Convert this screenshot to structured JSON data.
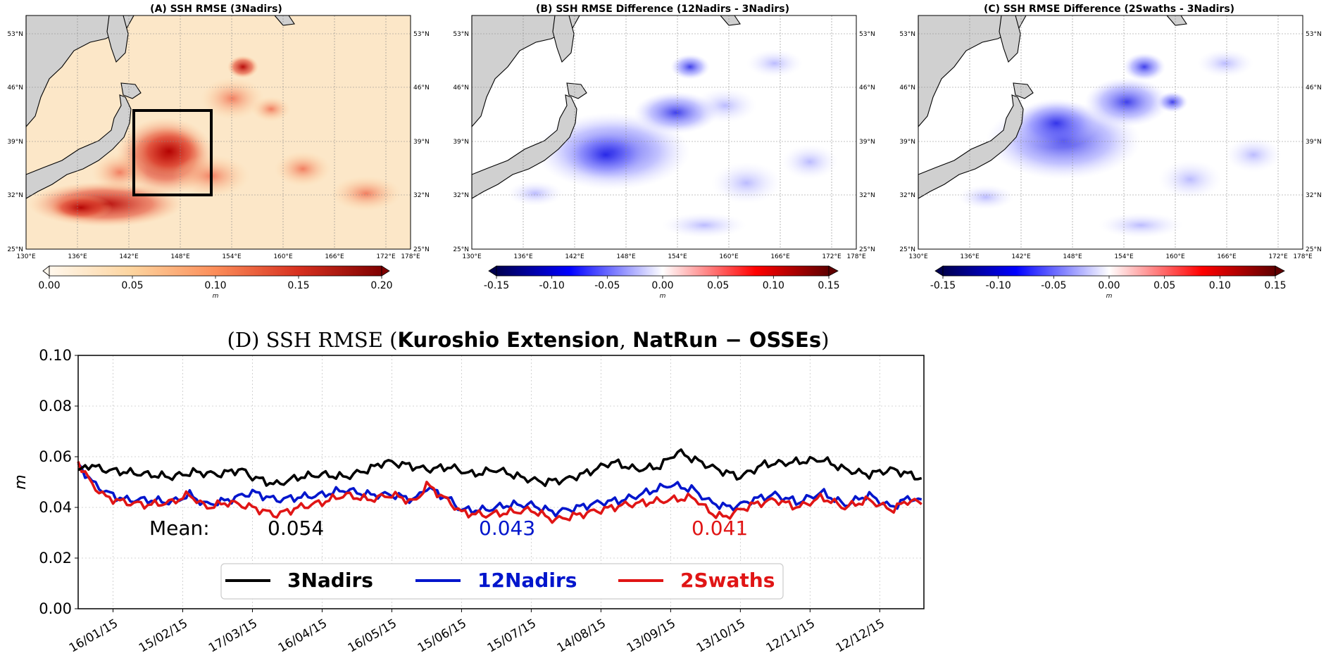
{
  "maps": [
    {
      "id": "A",
      "title": "(A) SSH RMSE (3Nadirs)",
      "palette": "reds",
      "colorbar_ticks": [
        "0.00",
        "0.05",
        "0.10",
        "0.15",
        "0.20"
      ],
      "colorbar_unit": "m",
      "has_box": true
    },
    {
      "id": "B",
      "title": "(B) SSH RMSE Difference (12Nadirs - 3Nadirs)",
      "palette": "diverging",
      "colorbar_ticks": [
        "-0.15",
        "-0.10",
        "-0.05",
        "0.00",
        "0.05",
        "0.10",
        "0.15"
      ],
      "colorbar_unit": "m",
      "has_box": false
    },
    {
      "id": "C",
      "title": "(C) SSH RMSE Difference (2Swaths - 3Nadirs)",
      "palette": "diverging",
      "colorbar_ticks": [
        "-0.15",
        "-0.10",
        "-0.05",
        "0.00",
        "0.05",
        "0.10",
        "0.15"
      ],
      "colorbar_unit": "m",
      "has_box": false
    }
  ],
  "map_axes": {
    "lat_ticks": [
      "53°N",
      "46°N",
      "39°N",
      "32°N",
      "25°N"
    ],
    "lon_ticks": [
      "130°E",
      "136°E",
      "142°E",
      "148°E",
      "154°E",
      "160°E",
      "166°E",
      "172°E",
      "178°E"
    ]
  },
  "chart_data": {
    "type": "line",
    "title_prefix": "(D) SSH  RMSE (",
    "title_bold": "Kuroshio Extension",
    "title_sep": ", ",
    "title_bold2": "NatRun  −  OSSEs",
    "title_suffix": ")",
    "ylabel": "m",
    "ylim": [
      0.0,
      0.1
    ],
    "yticks": [
      "0.00",
      "0.02",
      "0.04",
      "0.06",
      "0.08",
      "0.10"
    ],
    "xticks": [
      "16/01/15",
      "15/02/15",
      "17/03/15",
      "16/04/15",
      "16/05/15",
      "15/06/15",
      "15/07/15",
      "14/08/15",
      "13/09/15",
      "13/10/15",
      "12/11/15",
      "12/12/15"
    ],
    "xtick_days": [
      15,
      45,
      75,
      105,
      135,
      165,
      195,
      225,
      255,
      285,
      315,
      345
    ],
    "xlim_days": [
      0,
      364
    ],
    "mean_label": "Mean:",
    "series": [
      {
        "name": "3Nadirs",
        "color": "#000000",
        "mean": "0.054",
        "keypoints": [
          [
            0,
            0.054
          ],
          [
            5,
            0.057
          ],
          [
            10,
            0.055
          ],
          [
            20,
            0.054
          ],
          [
            30,
            0.053
          ],
          [
            40,
            0.052
          ],
          [
            50,
            0.054
          ],
          [
            60,
            0.053
          ],
          [
            70,
            0.055
          ],
          [
            75,
            0.052
          ],
          [
            85,
            0.049
          ],
          [
            95,
            0.052
          ],
          [
            105,
            0.053
          ],
          [
            115,
            0.052
          ],
          [
            125,
            0.055
          ],
          [
            132,
            0.058
          ],
          [
            140,
            0.057
          ],
          [
            150,
            0.055
          ],
          [
            160,
            0.056
          ],
          [
            170,
            0.053
          ],
          [
            180,
            0.055
          ],
          [
            190,
            0.052
          ],
          [
            200,
            0.05
          ],
          [
            210,
            0.051
          ],
          [
            220,
            0.054
          ],
          [
            230,
            0.058
          ],
          [
            240,
            0.055
          ],
          [
            250,
            0.056
          ],
          [
            258,
            0.062
          ],
          [
            265,
            0.059
          ],
          [
            275,
            0.055
          ],
          [
            285,
            0.052
          ],
          [
            295,
            0.057
          ],
          [
            310,
            0.058
          ],
          [
            320,
            0.059
          ],
          [
            330,
            0.055
          ],
          [
            340,
            0.053
          ],
          [
            350,
            0.055
          ],
          [
            358,
            0.053
          ],
          [
            364,
            0.051
          ]
        ]
      },
      {
        "name": "12Nadirs",
        "color": "#0015cc",
        "mean": "0.043",
        "keypoints": [
          [
            0,
            0.057
          ],
          [
            6,
            0.05
          ],
          [
            12,
            0.046
          ],
          [
            20,
            0.043
          ],
          [
            30,
            0.043
          ],
          [
            40,
            0.042
          ],
          [
            48,
            0.045
          ],
          [
            55,
            0.041
          ],
          [
            65,
            0.043
          ],
          [
            75,
            0.046
          ],
          [
            85,
            0.043
          ],
          [
            95,
            0.044
          ],
          [
            105,
            0.045
          ],
          [
            115,
            0.047
          ],
          [
            125,
            0.045
          ],
          [
            135,
            0.045
          ],
          [
            145,
            0.043
          ],
          [
            150,
            0.048
          ],
          [
            160,
            0.043
          ],
          [
            165,
            0.039
          ],
          [
            175,
            0.039
          ],
          [
            185,
            0.041
          ],
          [
            195,
            0.041
          ],
          [
            205,
            0.038
          ],
          [
            215,
            0.04
          ],
          [
            225,
            0.042
          ],
          [
            235,
            0.043
          ],
          [
            245,
            0.046
          ],
          [
            255,
            0.049
          ],
          [
            265,
            0.047
          ],
          [
            272,
            0.042
          ],
          [
            280,
            0.04
          ],
          [
            285,
            0.041
          ],
          [
            290,
            0.043
          ],
          [
            300,
            0.045
          ],
          [
            310,
            0.042
          ],
          [
            320,
            0.046
          ],
          [
            330,
            0.041
          ],
          [
            340,
            0.045
          ],
          [
            350,
            0.04
          ],
          [
            358,
            0.044
          ],
          [
            364,
            0.042
          ]
        ]
      },
      {
        "name": "2Swaths",
        "color": "#e01515",
        "mean": "0.041",
        "keypoints": [
          [
            0,
            0.058
          ],
          [
            6,
            0.049
          ],
          [
            12,
            0.044
          ],
          [
            20,
            0.042
          ],
          [
            30,
            0.041
          ],
          [
            40,
            0.042
          ],
          [
            48,
            0.045
          ],
          [
            55,
            0.04
          ],
          [
            65,
            0.042
          ],
          [
            75,
            0.04
          ],
          [
            85,
            0.037
          ],
          [
            95,
            0.04
          ],
          [
            105,
            0.042
          ],
          [
            115,
            0.045
          ],
          [
            125,
            0.043
          ],
          [
            135,
            0.045
          ],
          [
            145,
            0.042
          ],
          [
            150,
            0.049
          ],
          [
            160,
            0.042
          ],
          [
            165,
            0.038
          ],
          [
            175,
            0.037
          ],
          [
            185,
            0.038
          ],
          [
            195,
            0.039
          ],
          [
            205,
            0.035
          ],
          [
            215,
            0.037
          ],
          [
            225,
            0.039
          ],
          [
            235,
            0.041
          ],
          [
            245,
            0.042
          ],
          [
            255,
            0.043
          ],
          [
            265,
            0.044
          ],
          [
            272,
            0.038
          ],
          [
            278,
            0.036
          ],
          [
            285,
            0.039
          ],
          [
            290,
            0.041
          ],
          [
            300,
            0.043
          ],
          [
            310,
            0.04
          ],
          [
            320,
            0.044
          ],
          [
            330,
            0.04
          ],
          [
            340,
            0.043
          ],
          [
            350,
            0.039
          ],
          [
            358,
            0.043
          ],
          [
            364,
            0.041
          ]
        ]
      }
    ]
  }
}
